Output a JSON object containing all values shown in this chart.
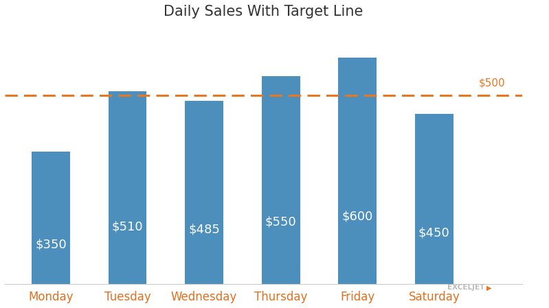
{
  "categories": [
    "Monday",
    "Tuesday",
    "Wednesday",
    "Thursday",
    "Friday",
    "Saturday"
  ],
  "values": [
    350,
    510,
    485,
    550,
    600,
    450
  ],
  "bar_color": "#4d8fbc",
  "target_value": 500,
  "target_color": "#e87722",
  "target_label": "$500",
  "title": "Daily Sales With Target Line",
  "title_fontsize": 15,
  "bar_labels": [
    "$350",
    "$510",
    "$485",
    "$550",
    "$600",
    "$450"
  ],
  "label_color": "white",
  "label_fontsize": 13,
  "xtick_color": "#e07020",
  "xtick_fontsize": 12,
  "ylim": [
    0,
    680
  ],
  "background_color": "#ffffff",
  "bar_width": 0.5,
  "watermark_text": "EXCELJET",
  "watermark_color": "#bbbbbb",
  "watermark_arrow_color": "#e87722"
}
